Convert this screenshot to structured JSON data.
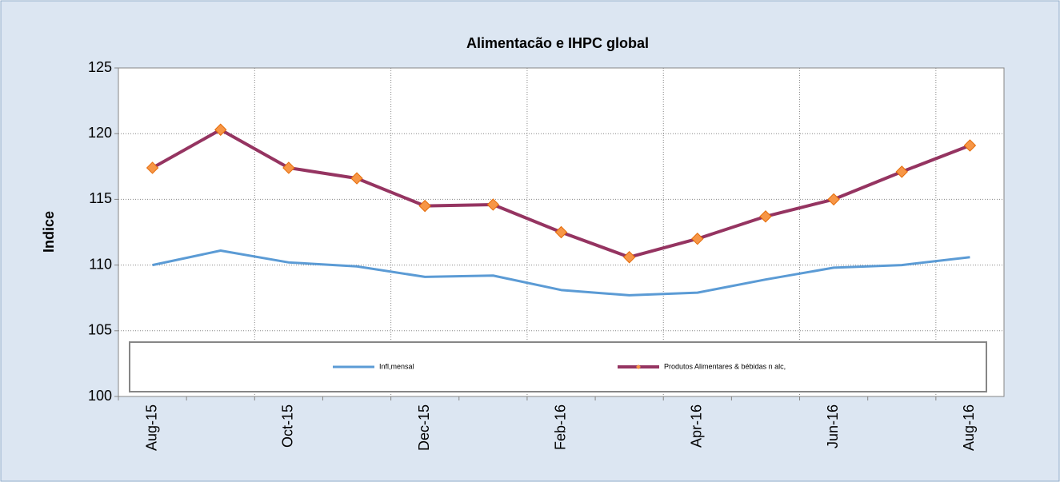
{
  "chart_data": {
    "type": "line",
    "title": "Alimentacão e IHPC global",
    "y_label": "Indice",
    "categories": [
      "Aug-15",
      null,
      "Oct-15",
      null,
      "Dec-15",
      null,
      "Feb-16",
      null,
      "Apr-16",
      null,
      "Jun-16",
      null,
      "Aug-16"
    ],
    "series": [
      {
        "name": "Infl,mensal",
        "color": "#5b9bd5",
        "values": [
          110.0,
          111.1,
          110.2,
          109.9,
          109.1,
          109.2,
          108.1,
          107.7,
          107.9,
          108.9,
          109.8,
          110.0,
          110.6
        ]
      },
      {
        "name": "Produtos Alimentares & bébidas n alc,",
        "color": "#953461",
        "marker_color": "#f79646",
        "values": [
          117.4,
          120.3,
          117.4,
          116.6,
          114.5,
          114.6,
          112.5,
          110.6,
          112.0,
          113.7,
          115.0,
          117.1,
          119.1
        ]
      }
    ],
    "ylim": [
      100,
      125
    ],
    "yticks": [
      100,
      105,
      110,
      115,
      120,
      125
    ],
    "grid": true
  }
}
